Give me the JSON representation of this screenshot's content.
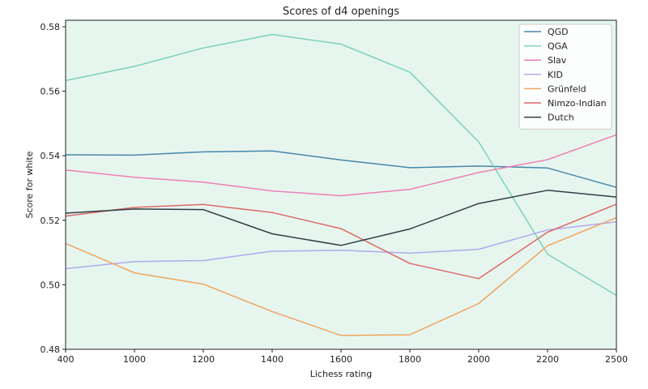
{
  "chart_data": {
    "type": "line",
    "title": "Scores of d4 openings",
    "xlabel": "Lichess rating",
    "ylabel": "Score for white",
    "x": [
      "400",
      "1000",
      "1200",
      "1400",
      "1600",
      "1800",
      "2000",
      "2200",
      "2500"
    ],
    "ylim": [
      0.48,
      0.582
    ],
    "yticks": [
      "0.48",
      "0.50",
      "0.52",
      "0.54",
      "0.56",
      "0.58"
    ],
    "plot_background": "#e6f6ef",
    "legend_position": "top-right",
    "series": [
      {
        "name": "QGD",
        "color": "#4a86a8",
        "values": [
          0.5403,
          0.5402,
          0.5412,
          0.5415,
          0.5387,
          0.5363,
          0.5368,
          0.5362,
          0.5302
        ]
      },
      {
        "name": "QGA",
        "color": "#7dd1b8",
        "values": [
          0.5633,
          0.5677,
          0.5734,
          0.5776,
          0.5746,
          0.5659,
          0.5443,
          0.5095,
          0.4967
        ]
      },
      {
        "name": "Slav",
        "color": "#ee7fb4",
        "values": [
          0.5356,
          0.5333,
          0.5318,
          0.5291,
          0.5276,
          0.5296,
          0.5348,
          0.5388,
          0.5465
        ]
      },
      {
        "name": "KID",
        "color": "#b3a9ee",
        "values": [
          0.505,
          0.5072,
          0.5075,
          0.5104,
          0.5107,
          0.5098,
          0.511,
          0.517,
          0.5195
        ]
      },
      {
        "name": "Grünfeld",
        "color": "#f0a35e",
        "values": [
          0.5128,
          0.5037,
          0.5002,
          0.4917,
          0.4843,
          0.4845,
          0.4942,
          0.5121,
          0.5208
        ]
      },
      {
        "name": "Nimzo-Indian",
        "color": "#dc6a68",
        "values": [
          0.5213,
          0.524,
          0.5249,
          0.5224,
          0.5174,
          0.5066,
          0.5019,
          0.5163,
          0.525
        ]
      },
      {
        "name": "Dutch",
        "color": "#2e3f46",
        "values": [
          0.5222,
          0.5235,
          0.5233,
          0.5158,
          0.5122,
          0.5173,
          0.5252,
          0.5293,
          0.5272
        ]
      }
    ]
  }
}
